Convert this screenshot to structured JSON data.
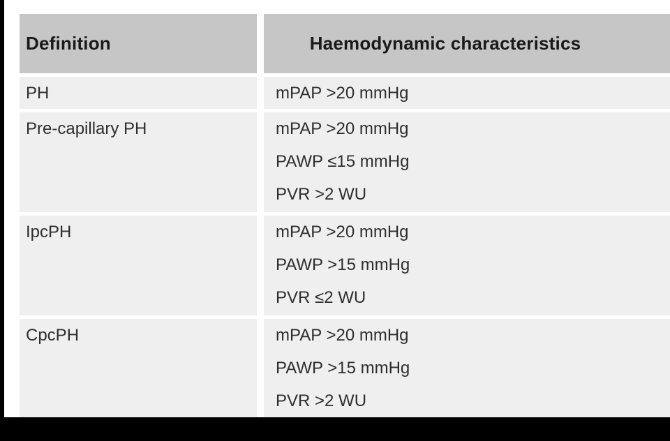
{
  "page": {
    "background": "#ffffff",
    "frame_color": "#000000"
  },
  "table": {
    "header": {
      "definition": "Definition",
      "characteristics": "Haemodynamic characteristics"
    },
    "rows": [
      {
        "definition": "PH",
        "criteria": [
          "mPAP >20 mmHg"
        ]
      },
      {
        "definition": "Pre-capillary PH",
        "criteria": [
          "mPAP >20 mmHg",
          "PAWP ≤15 mmHg",
          "PVR >2 WU"
        ]
      },
      {
        "definition": "IpcPH",
        "criteria": [
          "mPAP >20 mmHg",
          "PAWP >15 mmHg",
          "PVR ≤2 WU"
        ]
      },
      {
        "definition": "CpcPH",
        "criteria": [
          "mPAP >20 mmHg",
          "PAWP >15 mmHg",
          "PVR >2 WU"
        ]
      }
    ],
    "colors": {
      "header_bg": "#c6c6c6",
      "row_bg": "#efefef",
      "header_text": "#1a1a1a",
      "body_text": "#2e2e2e",
      "frame_color": "#000000"
    }
  }
}
